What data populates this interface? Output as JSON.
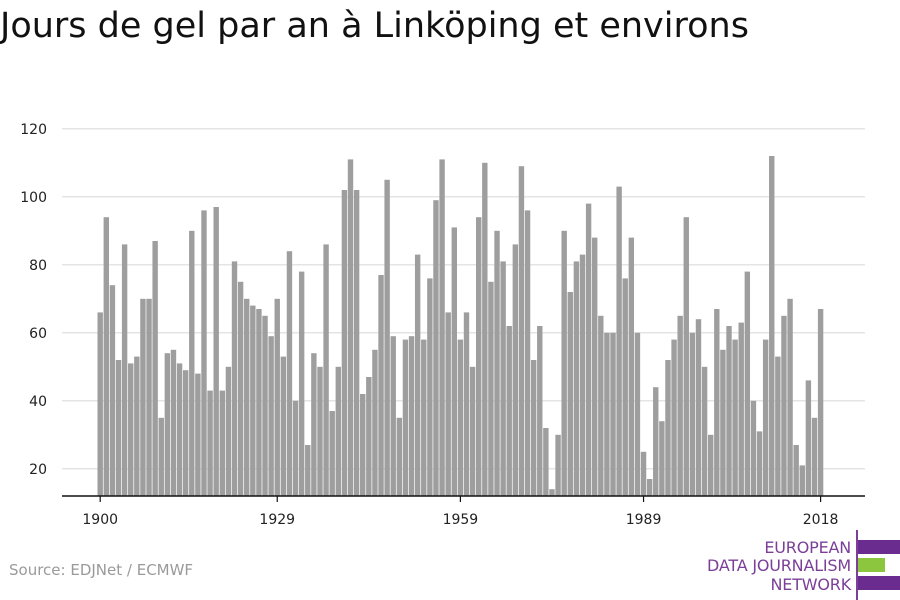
{
  "chart_data": {
    "type": "bar",
    "title": "Jours de gel par an à Linköping et environs",
    "source": "Source: EDJNet / ECMWF",
    "xlabel": "",
    "ylabel": "",
    "ylim": [
      12,
      122
    ],
    "yticks": [
      20,
      40,
      60,
      80,
      100,
      120
    ],
    "xticks": [
      1900,
      1929,
      1959,
      1989,
      2018
    ],
    "grid": true,
    "bar_color": "#9e9e9e",
    "x": [
      1900,
      1901,
      1902,
      1903,
      1904,
      1905,
      1906,
      1907,
      1908,
      1909,
      1910,
      1911,
      1912,
      1913,
      1914,
      1915,
      1916,
      1917,
      1918,
      1919,
      1920,
      1921,
      1922,
      1923,
      1924,
      1925,
      1926,
      1927,
      1928,
      1929,
      1930,
      1931,
      1932,
      1933,
      1934,
      1935,
      1936,
      1937,
      1938,
      1939,
      1940,
      1941,
      1942,
      1943,
      1944,
      1945,
      1946,
      1947,
      1948,
      1949,
      1950,
      1951,
      1952,
      1953,
      1954,
      1955,
      1956,
      1957,
      1958,
      1959,
      1960,
      1961,
      1962,
      1963,
      1964,
      1965,
      1966,
      1967,
      1968,
      1969,
      1970,
      1971,
      1972,
      1973,
      1974,
      1975,
      1976,
      1977,
      1978,
      1979,
      1980,
      1981,
      1982,
      1983,
      1984,
      1985,
      1986,
      1987,
      1988,
      1989,
      1990,
      1991,
      1992,
      1993,
      1994,
      1995,
      1996,
      1997,
      1998,
      1999,
      2000,
      2001,
      2002,
      2003,
      2004,
      2005,
      2006,
      2007,
      2008,
      2009,
      2010,
      2011,
      2012,
      2013,
      2014,
      2015,
      2016,
      2017,
      2018
    ],
    "values": [
      66,
      94,
      74,
      52,
      86,
      51,
      53,
      70,
      70,
      87,
      35,
      54,
      55,
      51,
      49,
      90,
      48,
      96,
      43,
      97,
      43,
      50,
      81,
      75,
      70,
      68,
      67,
      65,
      59,
      70,
      53,
      84,
      40,
      78,
      27,
      54,
      50,
      86,
      37,
      50,
      102,
      111,
      102,
      42,
      47,
      55,
      77,
      105,
      59,
      35,
      58,
      59,
      83,
      58,
      76,
      99,
      111,
      66,
      91,
      58,
      66,
      50,
      94,
      110,
      75,
      90,
      81,
      62,
      86,
      109,
      96,
      52,
      62,
      32,
      14,
      30,
      90,
      72,
      81,
      83,
      98,
      88,
      65,
      60,
      60,
      103,
      76,
      88,
      60,
      25,
      17,
      44,
      34,
      52,
      58,
      65,
      94,
      60,
      64,
      50,
      30,
      67,
      55,
      62,
      58,
      63,
      78,
      40,
      31,
      58,
      112,
      53,
      65,
      70,
      27,
      21,
      46,
      35,
      67
    ]
  },
  "logo": {
    "line1": "EUROPEAN",
    "line2": "DATA JOURNALISM",
    "line3": "NETWORK",
    "colors": {
      "purple": "#6a2c8f",
      "green": "#8cc63f",
      "text": "#7b3f98"
    }
  }
}
